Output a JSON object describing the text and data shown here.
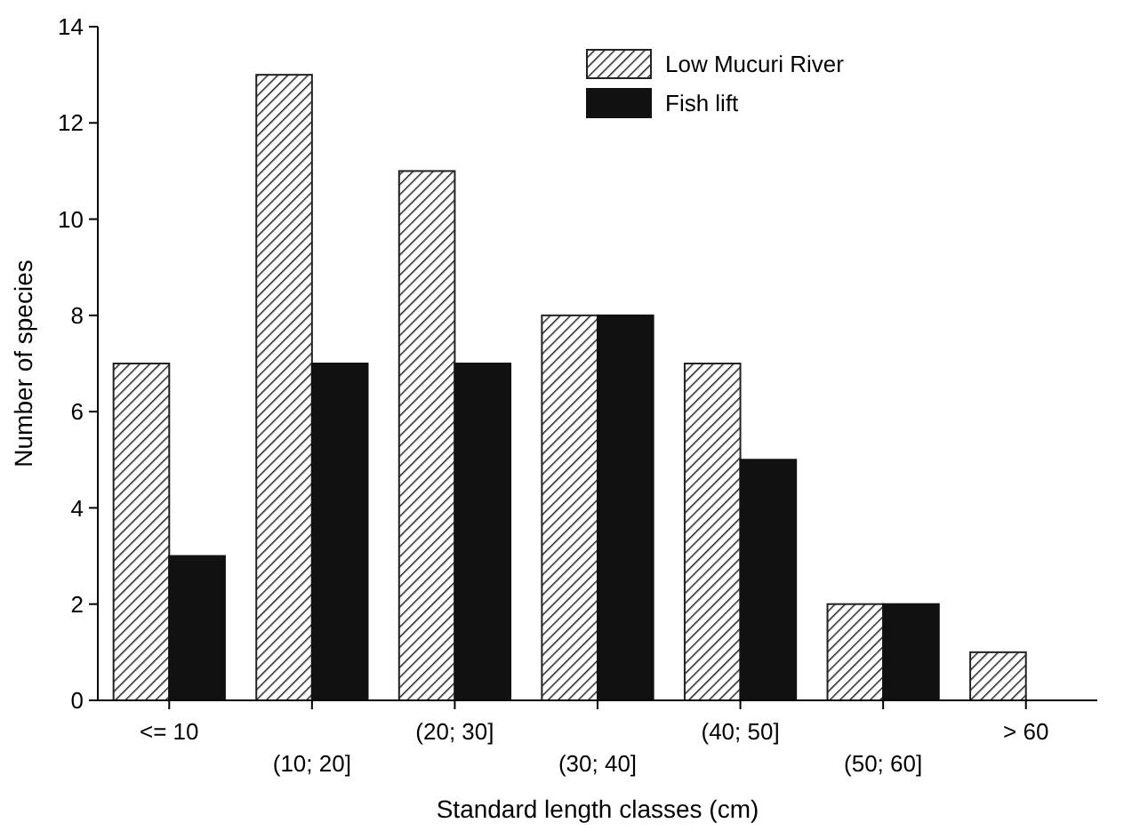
{
  "chart_data": {
    "type": "bar",
    "xlabel": "Standard length classes (cm)",
    "ylabel": "Number of species",
    "categories": [
      "<= 10",
      "(10; 20]",
      "(20; 30]",
      "(30; 40]",
      "(40; 50]",
      "(50; 60]",
      "> 60"
    ],
    "series": [
      {
        "name": "Low Mucuri River",
        "color": "#222222",
        "values": [
          7,
          13,
          11,
          8,
          7,
          2,
          1
        ]
      },
      {
        "name": "Fish lift",
        "color": "#111111",
        "values": [
          3,
          7,
          7,
          8,
          5,
          2,
          0
        ]
      }
    ],
    "ylim": [
      0,
      14
    ],
    "yticks": [
      0,
      2,
      4,
      6,
      8,
      10,
      12,
      14
    ],
    "legend": "top right"
  }
}
